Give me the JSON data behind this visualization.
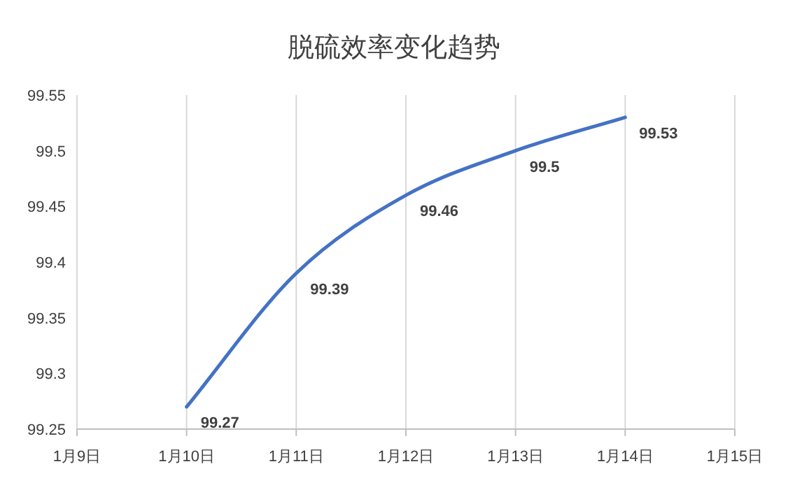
{
  "chart_data": {
    "type": "line",
    "title": "脱硫效率变化趋势",
    "x": [
      "--01-10",
      "--01-11",
      "--01-12",
      "--01-13",
      "--01-14"
    ],
    "series": [
      {
        "color": "#4472c4",
        "values": [
          99.27,
          99.39,
          99.46,
          99.5,
          99.53
        ]
      }
    ],
    "xlim": [
      "--01-09",
      "--01-15"
    ],
    "xticks": [
      {
        "value": "--01-09",
        "label": "1月9日"
      },
      {
        "value": "--01-10",
        "label": "1月10日"
      },
      {
        "value": "--01-11",
        "label": "1月11日"
      },
      {
        "value": "--01-12",
        "label": "1月12日"
      },
      {
        "value": "--01-13",
        "label": "1月13日"
      },
      {
        "value": "--01-14",
        "label": "1月14日"
      },
      {
        "value": "--01-15",
        "label": "1月15日"
      }
    ],
    "ylim": [
      99.25,
      99.55
    ],
    "yticks": [
      99.25,
      99.3,
      99.35,
      99.4,
      99.45,
      99.5,
      99.55
    ],
    "grid": "x",
    "data_labels": true
  }
}
